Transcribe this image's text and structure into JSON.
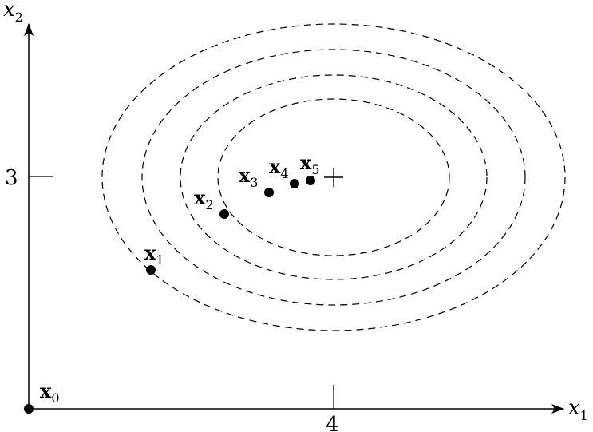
{
  "axes": {
    "x_label": "x",
    "x_sub": "1",
    "y_label": "x",
    "y_sub": "2",
    "x_tick": "4",
    "y_tick": "3"
  },
  "points": [
    {
      "base": "x",
      "sub": "0"
    },
    {
      "base": "x",
      "sub": "1"
    },
    {
      "base": "x",
      "sub": "2"
    },
    {
      "base": "x",
      "sub": "3"
    },
    {
      "base": "x",
      "sub": "4"
    },
    {
      "base": "x",
      "sub": "5"
    }
  ],
  "contours": {
    "count": 4,
    "style": "dashed"
  },
  "optimum": {
    "marker": "plus"
  }
}
